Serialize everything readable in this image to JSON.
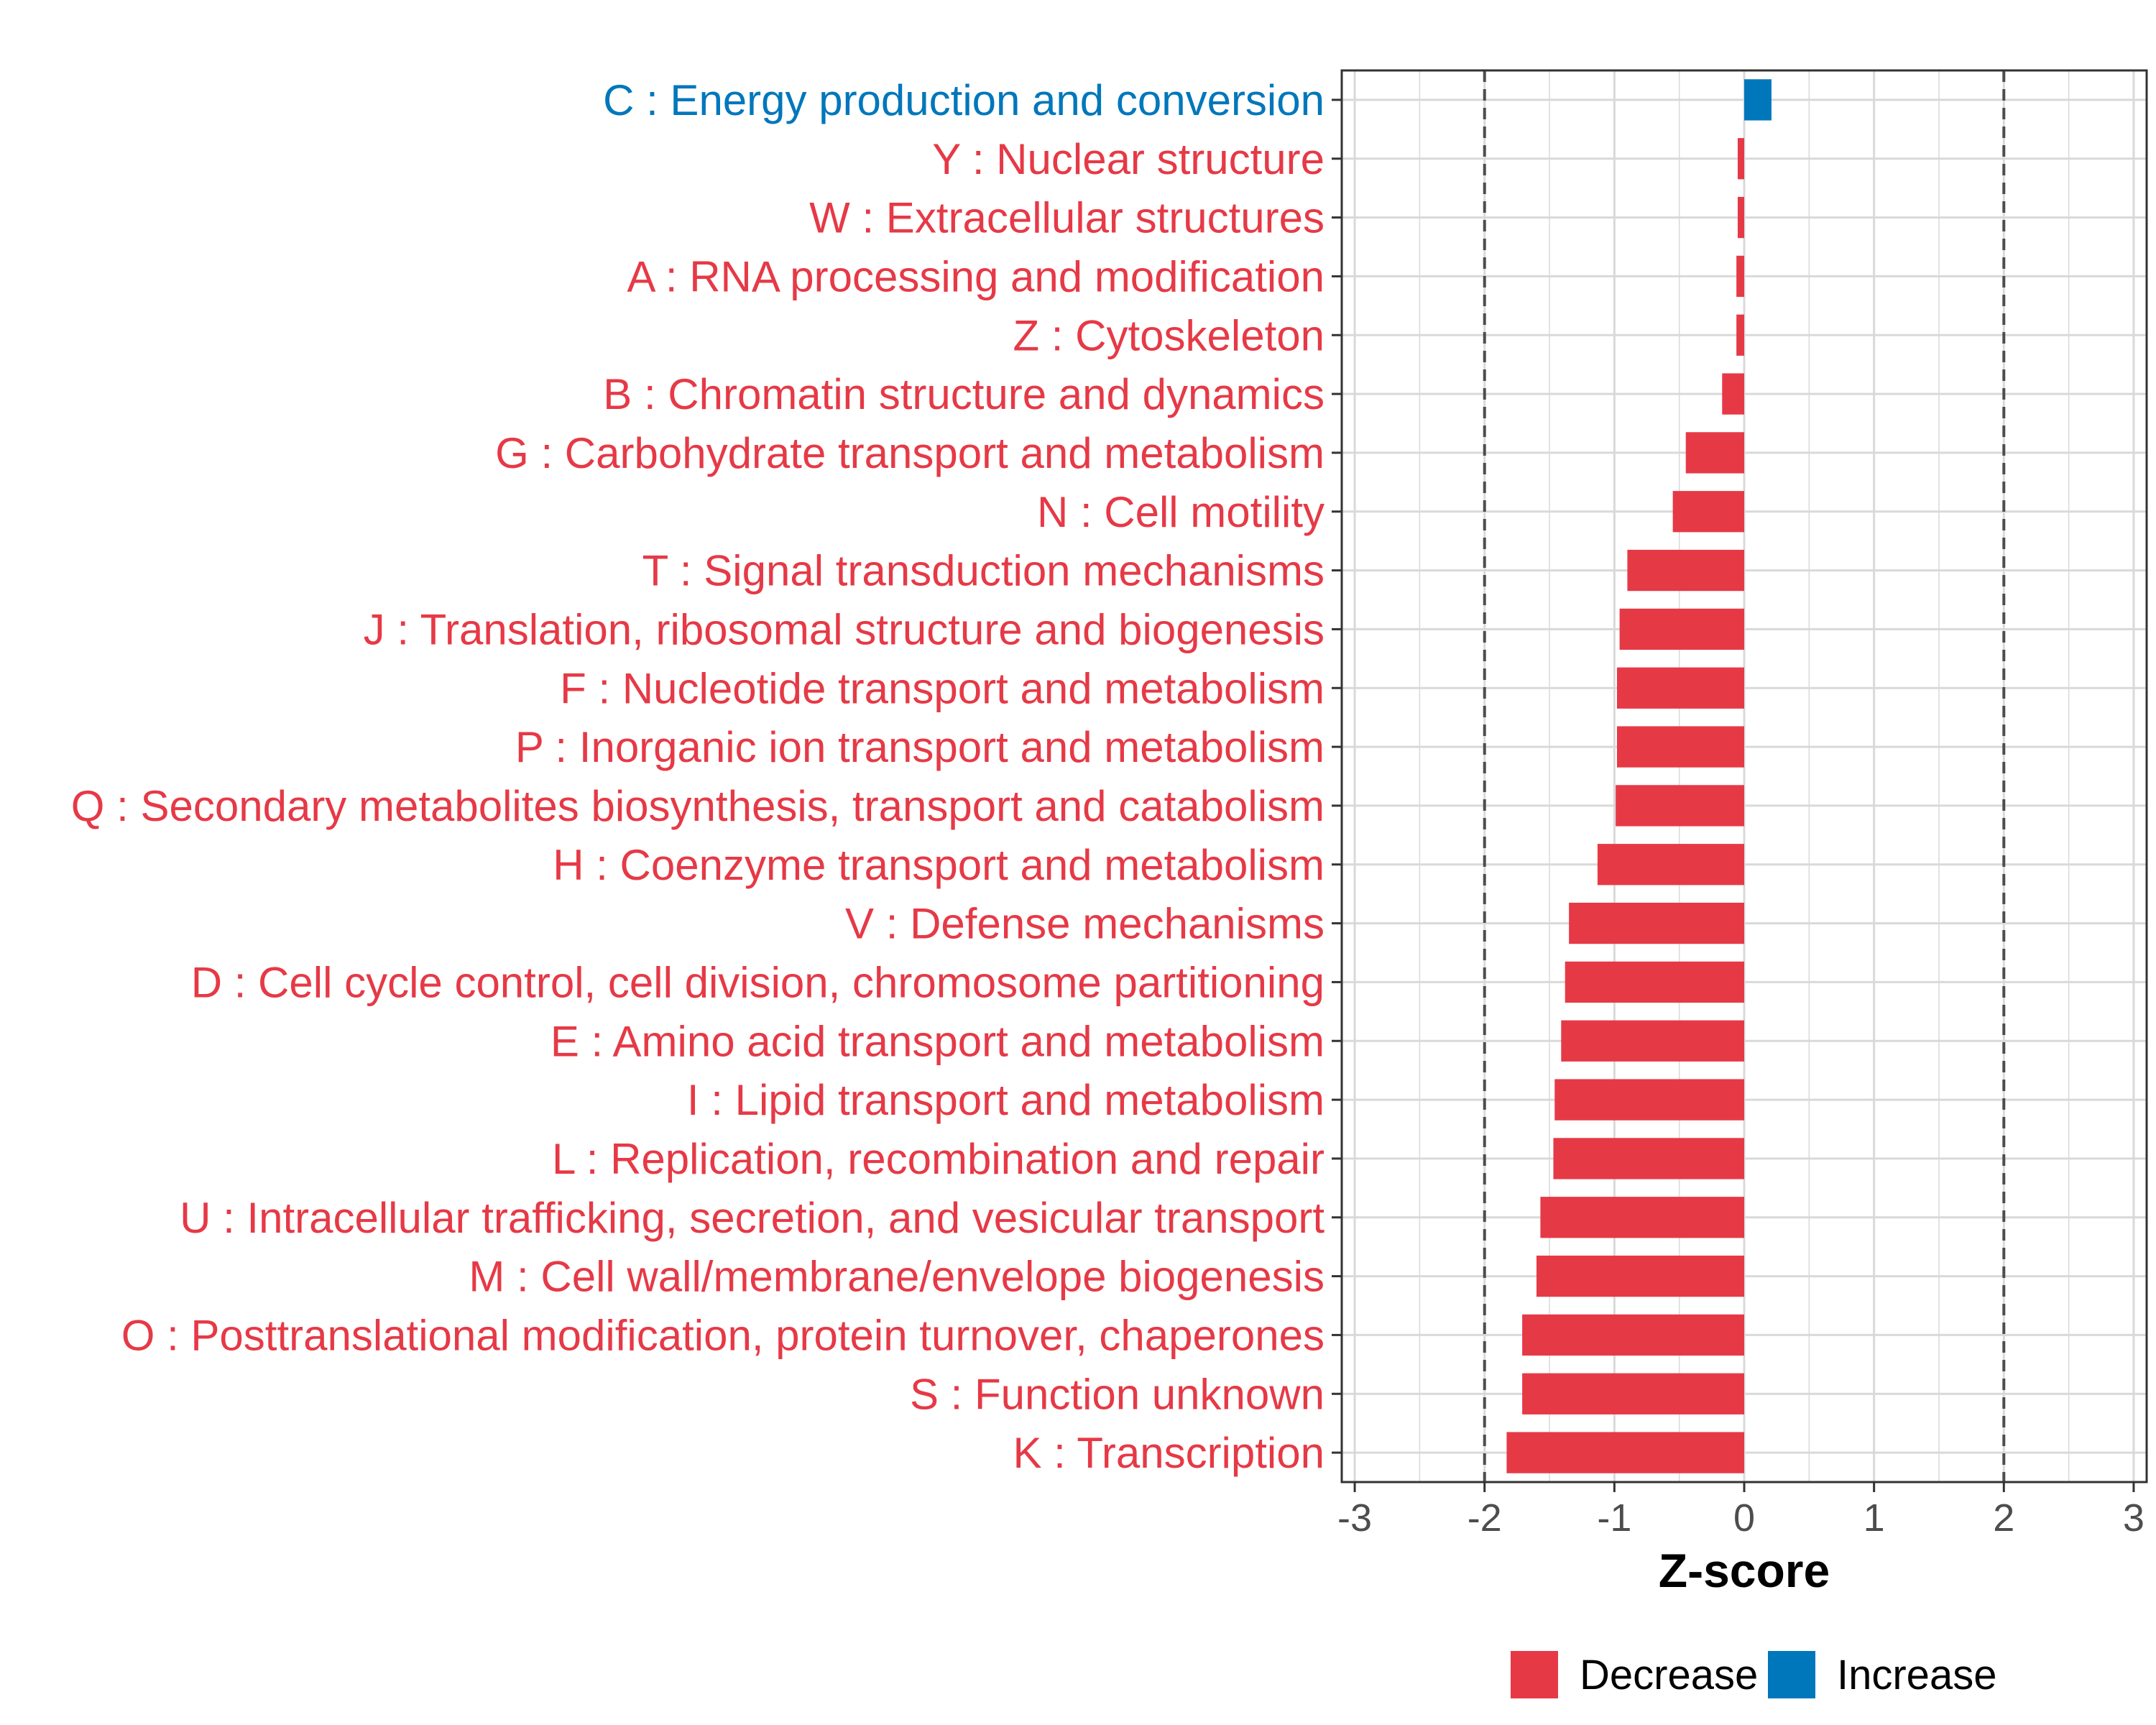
{
  "chart_data": {
    "type": "bar",
    "orientation": "horizontal",
    "xlabel": "Z-score",
    "ylabel": "",
    "xlim": [
      -3.1,
      3.1
    ],
    "xticks": [
      -3,
      -2,
      -1,
      0,
      1,
      2,
      3
    ],
    "xtick_labels": [
      "-3",
      "-2",
      "-1",
      "0",
      "1",
      "2",
      "3"
    ],
    "reference_lines": [
      -2,
      2
    ],
    "grid": true,
    "legend_position": "bottom",
    "legend": [
      {
        "name": "Decrease",
        "color": "#e63946"
      },
      {
        "name": "Increase",
        "color": "#0077bb"
      }
    ],
    "categories": [
      "C : Energy production and conversion",
      "Y : Nuclear structure",
      "W : Extracellular structures",
      "A : RNA processing and modification",
      "Z : Cytoskeleton",
      "B : Chromatin structure and dynamics",
      "G : Carbohydrate transport and metabolism",
      "N : Cell motility",
      "T : Signal transduction mechanisms",
      "J : Translation, ribosomal structure and biogenesis",
      "F : Nucleotide transport and metabolism",
      "P : Inorganic ion transport and metabolism",
      "Q : Secondary metabolites biosynthesis, transport and catabolism",
      "H : Coenzyme transport and metabolism",
      "V : Defense mechanisms",
      "D : Cell cycle control, cell division, chromosome partitioning",
      "E : Amino acid transport and metabolism",
      "I : Lipid transport and metabolism",
      "L : Replication, recombination and repair",
      "U : Intracellular trafficking, secretion, and vesicular transport",
      "M : Cell wall/membrane/envelope biogenesis",
      "O : Posttranslational modification, protein turnover, chaperones",
      "S : Function unknown",
      "K : Transcription"
    ],
    "values": [
      0.21,
      -0.05,
      -0.05,
      -0.06,
      -0.06,
      -0.17,
      -0.45,
      -0.55,
      -0.9,
      -0.96,
      -0.98,
      -0.98,
      -0.99,
      -1.13,
      -1.35,
      -1.38,
      -1.41,
      -1.46,
      -1.47,
      -1.57,
      -1.6,
      -1.71,
      -1.71,
      -1.83
    ],
    "directions": [
      "Increase",
      "Decrease",
      "Decrease",
      "Decrease",
      "Decrease",
      "Decrease",
      "Decrease",
      "Decrease",
      "Decrease",
      "Decrease",
      "Decrease",
      "Decrease",
      "Decrease",
      "Decrease",
      "Decrease",
      "Decrease",
      "Decrease",
      "Decrease",
      "Decrease",
      "Decrease",
      "Decrease",
      "Decrease",
      "Decrease",
      "Decrease"
    ]
  },
  "colors": {
    "decrease": "#e63946",
    "increase": "#0077bb",
    "grid": "#d9d9d9",
    "axis": "#333333",
    "reference_line": "#4d4d4d"
  }
}
